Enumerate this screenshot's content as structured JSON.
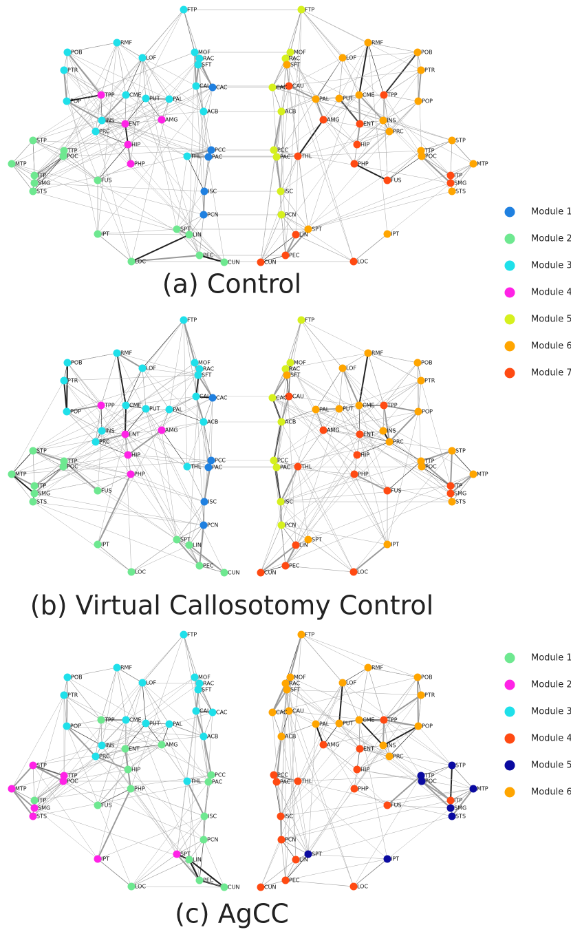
{
  "regions": [
    "FTP",
    "POB",
    "RMF",
    "LOF",
    "MOF",
    "RAC",
    "SFT",
    "PTR",
    "CAU",
    "CAC",
    "TPP",
    "CME",
    "PUT",
    "PAL",
    "POP",
    "ACB",
    "INS",
    "ENT",
    "AMG",
    "PRC",
    "STP",
    "HIP",
    "TTP",
    "POC",
    "PCC",
    "THL",
    "PAC",
    "MTP",
    "PHP",
    "ITP",
    "SMG",
    "STS",
    "FUS",
    "ISC",
    "PCN",
    "SPT",
    "LIN",
    "IPT",
    "PEC",
    "LOC",
    "CUN"
  ],
  "legends": [
    {
      "modules": [
        {
          "name": "Module 1",
          "color": "#1f80e0"
        },
        {
          "name": "Module 2",
          "color": "#6ee890"
        },
        {
          "name": "Module 3",
          "color": "#1fe0ea"
        },
        {
          "name": "Module 4",
          "color": "#ff22e6"
        },
        {
          "name": "Module 5",
          "color": "#d6f01e"
        },
        {
          "name": "Module 6",
          "color": "#ffa500"
        },
        {
          "name": "Module 7",
          "color": "#ff4a12"
        }
      ]
    },
    {
      "modules": [
        {
          "name": "Module 1",
          "color": "#6ee890"
        },
        {
          "name": "Module 2",
          "color": "#ff22e6"
        },
        {
          "name": "Module 3",
          "color": "#1fe0ea"
        },
        {
          "name": "Module 4",
          "color": "#ff4a12"
        },
        {
          "name": "Module 5",
          "color": "#0a0aa0"
        },
        {
          "name": "Module 6",
          "color": "#ffa500"
        }
      ]
    }
  ],
  "panels": [
    {
      "caption": "(a) Control",
      "legend": 0,
      "left_modules": [
        2,
        2,
        2,
        2,
        2,
        2,
        2,
        2,
        2,
        0,
        3,
        2,
        2,
        2,
        2,
        2,
        2,
        3,
        3,
        2,
        1,
        3,
        1,
        1,
        0,
        2,
        0,
        1,
        3,
        1,
        1,
        1,
        1,
        0,
        0,
        1,
        1,
        1,
        1,
        1,
        1
      ],
      "right_modules": [
        4,
        5,
        5,
        5,
        4,
        4,
        5,
        5,
        6,
        4,
        6,
        5,
        5,
        5,
        5,
        4,
        5,
        6,
        6,
        5,
        5,
        6,
        5,
        5,
        4,
        6,
        4,
        5,
        6,
        6,
        6,
        5,
        6,
        4,
        4,
        5,
        6,
        5,
        6,
        6,
        6
      ]
    },
    {
      "caption": "(b) Virtual Callosotomy Control",
      "legend": 0,
      "left_modules": [
        2,
        2,
        2,
        2,
        2,
        2,
        2,
        2,
        2,
        0,
        3,
        2,
        2,
        2,
        2,
        2,
        2,
        3,
        3,
        2,
        1,
        3,
        1,
        1,
        0,
        2,
        0,
        1,
        3,
        1,
        1,
        1,
        1,
        0,
        0,
        1,
        1,
        1,
        1,
        1,
        1
      ],
      "right_modules": [
        4,
        5,
        5,
        5,
        4,
        4,
        5,
        5,
        6,
        4,
        6,
        5,
        5,
        5,
        5,
        4,
        5,
        6,
        6,
        5,
        5,
        6,
        5,
        5,
        4,
        6,
        4,
        5,
        6,
        6,
        6,
        5,
        6,
        4,
        4,
        5,
        6,
        5,
        6,
        6,
        6
      ]
    },
    {
      "caption": "(c) AgCC",
      "legend": 1,
      "left_modules": [
        2,
        2,
        2,
        2,
        2,
        2,
        2,
        2,
        2,
        2,
        0,
        2,
        2,
        2,
        2,
        2,
        2,
        0,
        0,
        2,
        1,
        0,
        1,
        1,
        0,
        2,
        0,
        1,
        0,
        0,
        1,
        1,
        0,
        0,
        0,
        1,
        0,
        1,
        0,
        0,
        0
      ],
      "right_modules": [
        5,
        5,
        5,
        5,
        5,
        5,
        5,
        5,
        5,
        5,
        3,
        5,
        5,
        5,
        5,
        5,
        5,
        3,
        3,
        5,
        4,
        3,
        4,
        4,
        3,
        3,
        3,
        4,
        3,
        3,
        4,
        4,
        3,
        3,
        3,
        4,
        3,
        4,
        3,
        3,
        3
      ]
    }
  ]
}
